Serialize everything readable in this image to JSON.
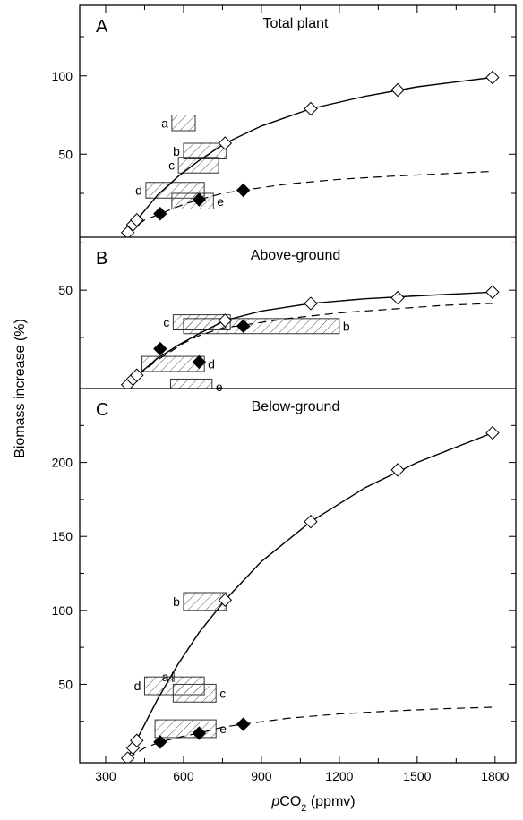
{
  "chart_data": {
    "type": "scatter",
    "xlabel_italic": "p",
    "xlabel_main": "CO",
    "xlabel_sub": "2",
    "xlabel_unit": " (ppmv)",
    "ylabel": "Biomass increase (%)",
    "x_ticks": [
      300,
      600,
      900,
      1200,
      1500,
      1800
    ],
    "xlim": [
      200,
      1880
    ],
    "panels": [
      {
        "letter": "A",
        "title": "Total plant",
        "ylim": [
          -3,
          145
        ],
        "y_ticks": [
          50,
          100
        ],
        "open_diamonds": [
          [
            385,
            0
          ],
          [
            405,
            5
          ],
          [
            420,
            8
          ],
          [
            760,
            57
          ],
          [
            1090,
            79
          ],
          [
            1425,
            91
          ],
          [
            1790,
            99
          ]
        ],
        "filled_diamonds": [
          [
            510,
            12
          ],
          [
            660,
            21
          ],
          [
            830,
            27
          ]
        ],
        "solid_curve": [
          [
            385,
            0
          ],
          [
            430,
            10
          ],
          [
            500,
            24
          ],
          [
            580,
            36
          ],
          [
            660,
            46
          ],
          [
            760,
            57
          ],
          [
            900,
            68
          ],
          [
            1090,
            79
          ],
          [
            1300,
            87
          ],
          [
            1500,
            93
          ],
          [
            1790,
            99
          ]
        ],
        "dashed_curve": [
          [
            385,
            0
          ],
          [
            450,
            8
          ],
          [
            510,
            12
          ],
          [
            600,
            18
          ],
          [
            660,
            21
          ],
          [
            750,
            25
          ],
          [
            830,
            27
          ],
          [
            1000,
            31
          ],
          [
            1200,
            34
          ],
          [
            1400,
            36
          ],
          [
            1600,
            37.5
          ],
          [
            1790,
            39
          ]
        ],
        "boxes": [
          {
            "label": "a",
            "x0": 555,
            "x1": 645,
            "y0": 65,
            "y1": 75,
            "label_side": "left"
          },
          {
            "label": "b",
            "x0": 600,
            "x1": 765,
            "y0": 47,
            "y1": 57,
            "label_side": "left"
          },
          {
            "label": "c",
            "x0": 580,
            "x1": 735,
            "y0": 38,
            "y1": 48,
            "label_side": "left"
          },
          {
            "label": "d",
            "x0": 455,
            "x1": 680,
            "y0": 22,
            "y1": 32,
            "label_side": "left"
          },
          {
            "label": "e",
            "x0": 555,
            "x1": 715,
            "y0": 15,
            "y1": 25,
            "label_side": "right"
          }
        ]
      },
      {
        "letter": "B",
        "title": "Above-ground",
        "ylim": [
          -2,
          78
        ],
        "y_ticks": [
          50
        ],
        "open_diamonds": [
          [
            385,
            0
          ],
          [
            405,
            3
          ],
          [
            420,
            5
          ],
          [
            760,
            34
          ],
          [
            1090,
            43
          ],
          [
            1425,
            46
          ],
          [
            1790,
            49
          ]
        ],
        "filled_diamonds": [
          [
            510,
            19
          ],
          [
            660,
            12
          ],
          [
            830,
            31
          ]
        ],
        "solid_curve": [
          [
            385,
            0
          ],
          [
            430,
            6
          ],
          [
            500,
            14
          ],
          [
            580,
            21
          ],
          [
            660,
            27
          ],
          [
            760,
            34
          ],
          [
            900,
            39
          ],
          [
            1090,
            43
          ],
          [
            1300,
            45.5
          ],
          [
            1500,
            47
          ],
          [
            1790,
            49
          ]
        ],
        "dashed_curve": [
          [
            385,
            0
          ],
          [
            450,
            8
          ],
          [
            510,
            14
          ],
          [
            600,
            22
          ],
          [
            660,
            26
          ],
          [
            750,
            30
          ],
          [
            830,
            31.5
          ],
          [
            1000,
            35
          ],
          [
            1200,
            38
          ],
          [
            1400,
            40
          ],
          [
            1600,
            42
          ],
          [
            1790,
            43
          ]
        ],
        "boxes": [
          {
            "label": "c",
            "x0": 560,
            "x1": 780,
            "y0": 29,
            "y1": 37,
            "label_side": "left"
          },
          {
            "label": "b",
            "x0": 600,
            "x1": 1200,
            "y0": 27,
            "y1": 35,
            "label_side": "right"
          },
          {
            "label": "d",
            "x0": 440,
            "x1": 680,
            "y0": 7,
            "y1": 15,
            "label_side": "right"
          },
          {
            "label": "e",
            "x0": 550,
            "x1": 710,
            "y0": -5,
            "y1": 3,
            "label_side": "right"
          }
        ]
      },
      {
        "letter": "C",
        "title": "Below-ground",
        "ylim": [
          -3,
          250
        ],
        "y_ticks": [
          50,
          100,
          150,
          200
        ],
        "open_diamonds": [
          [
            385,
            0
          ],
          [
            405,
            7
          ],
          [
            420,
            12
          ],
          [
            760,
            107
          ],
          [
            1090,
            160
          ],
          [
            1425,
            195
          ],
          [
            1790,
            220
          ]
        ],
        "filled_diamonds": [
          [
            510,
            11
          ],
          [
            660,
            17
          ],
          [
            830,
            23
          ]
        ],
        "solid_curve": [
          [
            385,
            0
          ],
          [
            430,
            16
          ],
          [
            500,
            40
          ],
          [
            580,
            64
          ],
          [
            660,
            85
          ],
          [
            760,
            107
          ],
          [
            900,
            133
          ],
          [
            1090,
            160
          ],
          [
            1300,
            183
          ],
          [
            1500,
            200
          ],
          [
            1790,
            220
          ]
        ],
        "dashed_curve": [
          [
            385,
            0
          ],
          [
            450,
            7
          ],
          [
            510,
            11
          ],
          [
            600,
            15
          ],
          [
            660,
            17
          ],
          [
            750,
            21
          ],
          [
            830,
            23
          ],
          [
            1000,
            27
          ],
          [
            1200,
            30
          ],
          [
            1400,
            32
          ],
          [
            1600,
            33.5
          ],
          [
            1790,
            34.5
          ]
        ],
        "boxes": [
          {
            "label": "a",
            "x0": 557,
            "x1": 563,
            "y0": 52,
            "y1": 58,
            "label_side": "left"
          },
          {
            "label": "b",
            "x0": 600,
            "x1": 765,
            "y0": 100,
            "y1": 112,
            "label_side": "left"
          },
          {
            "label": "d",
            "x0": 450,
            "x1": 680,
            "y0": 43,
            "y1": 55,
            "label_side": "left"
          },
          {
            "label": "c",
            "x0": 560,
            "x1": 725,
            "y0": 38,
            "y1": 50,
            "label_side": "right"
          },
          {
            "label": "e",
            "x0": 490,
            "x1": 725,
            "y0": 14,
            "y1": 26,
            "label_side": "right"
          }
        ]
      }
    ]
  }
}
